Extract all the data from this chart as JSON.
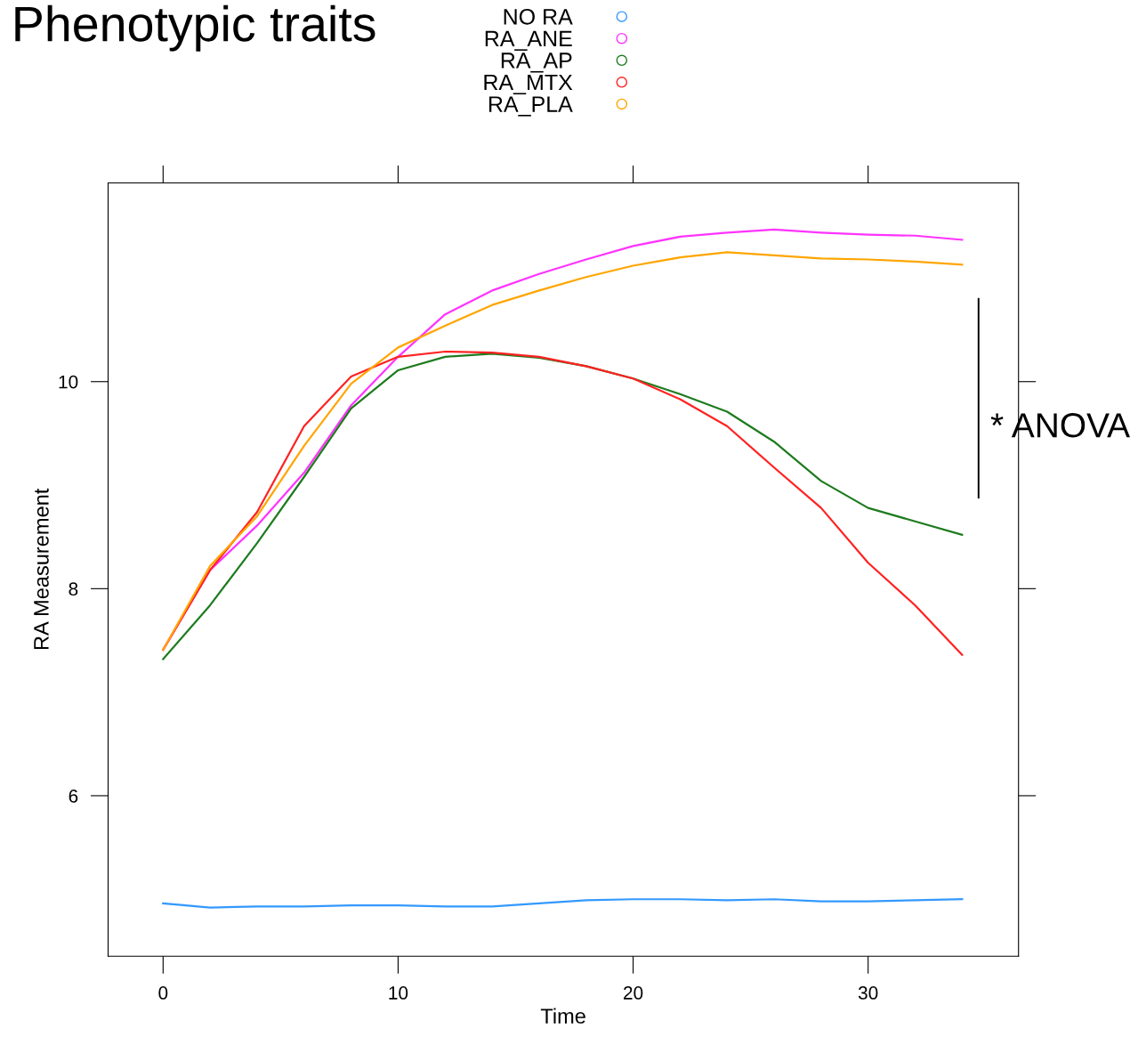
{
  "chart_data": {
    "type": "line",
    "title": "Phenotypic traits",
    "xlabel": "Time",
    "ylabel": "RA Measurement",
    "xlim": [
      -2.34,
      36.4
    ],
    "ylim": [
      4.45,
      11.92
    ],
    "xticks": [
      0,
      10,
      20,
      30
    ],
    "yticks": [
      6,
      8,
      10
    ],
    "legend": "top",
    "marker": "none",
    "line_style": "solid",
    "grid": false,
    "annotations": [
      "* ANOVA"
    ],
    "x": [
      0,
      2,
      4,
      6,
      8,
      10,
      12,
      14,
      16,
      18,
      20,
      22,
      24,
      26,
      28,
      30,
      32,
      34
    ],
    "series": [
      {
        "name": "NO RA",
        "color": "#3399ff",
        "values": [
          4.96,
          4.92,
          4.93,
          4.93,
          4.94,
          4.94,
          4.93,
          4.93,
          4.96,
          4.99,
          5.0,
          5.0,
          4.99,
          5.0,
          4.98,
          4.98,
          4.99,
          5.0
        ]
      },
      {
        "name": "RA_ANE",
        "color": "#ff33ff",
        "values": [
          7.41,
          8.18,
          8.61,
          9.12,
          9.77,
          10.24,
          10.65,
          10.88,
          11.04,
          11.18,
          11.31,
          11.4,
          11.44,
          11.47,
          11.44,
          11.42,
          11.41,
          11.37
        ]
      },
      {
        "name": "RA_AP",
        "color": "#1e7b1e",
        "values": [
          7.32,
          7.84,
          8.44,
          9.08,
          9.74,
          10.11,
          10.24,
          10.27,
          10.23,
          10.15,
          10.03,
          9.88,
          9.71,
          9.42,
          9.04,
          8.78,
          8.65,
          8.52
        ]
      },
      {
        "name": "RA_MTX",
        "color": "#ff2222",
        "values": [
          7.41,
          8.18,
          8.74,
          9.57,
          10.05,
          10.24,
          10.29,
          10.28,
          10.24,
          10.15,
          10.03,
          9.83,
          9.57,
          9.17,
          8.78,
          8.25,
          7.84,
          7.36
        ]
      },
      {
        "name": "RA_PLA",
        "color": "#ffa500",
        "values": [
          7.41,
          8.22,
          8.7,
          9.38,
          9.98,
          10.33,
          10.54,
          10.74,
          10.88,
          11.01,
          11.12,
          11.2,
          11.25,
          11.22,
          11.19,
          11.18,
          11.16,
          11.13
        ]
      }
    ]
  }
}
